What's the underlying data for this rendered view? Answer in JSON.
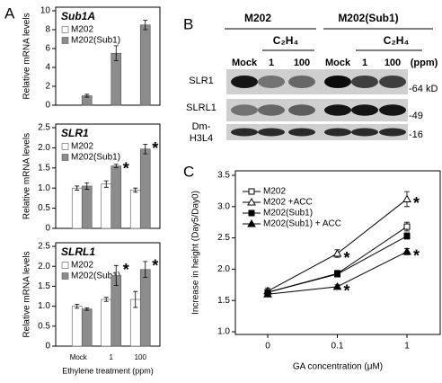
{
  "panel_labels": [
    "A",
    "B",
    "C"
  ],
  "chart_data": [
    {
      "type": "bar",
      "title": "Sub1A",
      "y_label": "Relative mRNA levels",
      "ylim": [
        0,
        10
      ],
      "yticks": [
        0,
        2,
        4,
        6,
        8,
        10
      ],
      "series": [
        {
          "name": "M202",
          "color": "#ffffff",
          "values": [
            0,
            0,
            0
          ],
          "errors": [
            0,
            0,
            0
          ],
          "annotations": [
            null,
            null,
            null
          ]
        },
        {
          "name": "M202(Sub1)",
          "color": "#8c8c8c",
          "values": [
            1.0,
            5.5,
            8.5
          ],
          "errors": [
            0.15,
            0.8,
            0.5
          ],
          "annotations": [
            null,
            null,
            null
          ]
        }
      ]
    },
    {
      "type": "bar",
      "title": "SLR1",
      "y_label": "Relative mRNA levels",
      "ylim": [
        0,
        2.5
      ],
      "yticks": [
        0,
        0.5,
        {
          "value": 1,
          "label": "1.0"
        },
        1.5,
        {
          "value": 2,
          "label": "2.0"
        },
        2.5
      ],
      "series": [
        {
          "name": "M202",
          "color": "#ffffff",
          "values": [
            1.0,
            1.1,
            0.95
          ],
          "errors": [
            0.05,
            0.08,
            0.05
          ],
          "annotations": [
            null,
            null,
            null
          ]
        },
        {
          "name": "M202(Sub1)",
          "color": "#8c8c8c",
          "values": [
            1.05,
            1.55,
            1.97
          ],
          "errors": [
            0.08,
            0.04,
            0.12
          ],
          "annotations": [
            null,
            "*",
            "*"
          ]
        }
      ]
    },
    {
      "type": "bar",
      "title": "SLRL1",
      "y_label": "Relative mRNA levels",
      "x_label": "Ethylene treatment (ppm)",
      "categories": [
        "Mock",
        "1",
        "100"
      ],
      "ylim": [
        0,
        2.5
      ],
      "yticks": [
        0,
        0.5,
        {
          "value": 1,
          "label": "1.0"
        },
        1.5,
        {
          "value": 2,
          "label": "2.0"
        },
        2.5
      ],
      "series": [
        {
          "name": "M202",
          "color": "#ffffff",
          "values": [
            1.0,
            1.17,
            1.17
          ],
          "errors": [
            0.05,
            0.05,
            0.2
          ],
          "annotations": [
            null,
            null,
            null
          ]
        },
        {
          "name": "M202(Sub1)",
          "color": "#8c8c8c",
          "values": [
            0.93,
            1.77,
            1.92
          ],
          "errors": [
            0.03,
            0.25,
            0.2
          ],
          "annotations": [
            null,
            "*",
            "*"
          ]
        }
      ]
    },
    {
      "type": "line",
      "y_label": "Increase in height (Day5/Day0)",
      "x_label": "GA concentration (μM)",
      "categories": [
        "0",
        "0.1",
        "1"
      ],
      "ylim": [
        1,
        3.5
      ],
      "yticks": [
        {
          "value": 1,
          "label": "1.0"
        },
        1.5,
        {
          "value": 2,
          "label": "2.0"
        },
        2.5,
        {
          "value": 3,
          "label": "3.0"
        },
        3.5
      ],
      "series": [
        {
          "name": "M202",
          "color": "#000000",
          "marker": "square",
          "filled": false,
          "values": [
            1.63,
            1.93,
            2.68
          ],
          "errors": [
            0.04,
            0.05,
            0.07
          ],
          "annotations": [
            null,
            null,
            null
          ]
        },
        {
          "name": "M202 +ACC",
          "color": "#000000",
          "marker": "triangle",
          "filled": false,
          "values": [
            1.65,
            2.25,
            3.12
          ],
          "errors": [
            0.05,
            0.06,
            0.12
          ],
          "annotations": [
            null,
            "*",
            "*"
          ]
        },
        {
          "name": "M202(Sub1)",
          "color": "#000000",
          "marker": "square",
          "filled": true,
          "values": [
            1.63,
            1.92,
            2.53
          ],
          "errors": [
            0.04,
            0.04,
            0.05
          ],
          "annotations": [
            null,
            null,
            null
          ]
        },
        {
          "name": "M202(Sub1) + ACC",
          "color": "#000000",
          "marker": "triangle",
          "filled": true,
          "values": [
            1.6,
            1.72,
            2.28
          ],
          "errors": [
            0.04,
            0.03,
            0.05
          ],
          "annotations": [
            null,
            "*",
            "*"
          ]
        }
      ]
    }
  ],
  "blot": {
    "groups": [
      {
        "label": "M202",
        "treatment": "C₂H₄"
      },
      {
        "label": "M202(Sub1)",
        "treatment": "C₂H₄"
      }
    ],
    "lanes": [
      "Mock",
      "1",
      "100",
      "Mock",
      "1",
      "100"
    ],
    "unit": "(ppm)",
    "rows": [
      {
        "label": [
          "SLR1"
        ],
        "marker": "-64 kD"
      },
      {
        "label": [
          "SLRL1"
        ],
        "marker": "-49"
      },
      {
        "label": [
          "Dm-",
          "H3L4"
        ],
        "marker": "-16"
      }
    ]
  }
}
